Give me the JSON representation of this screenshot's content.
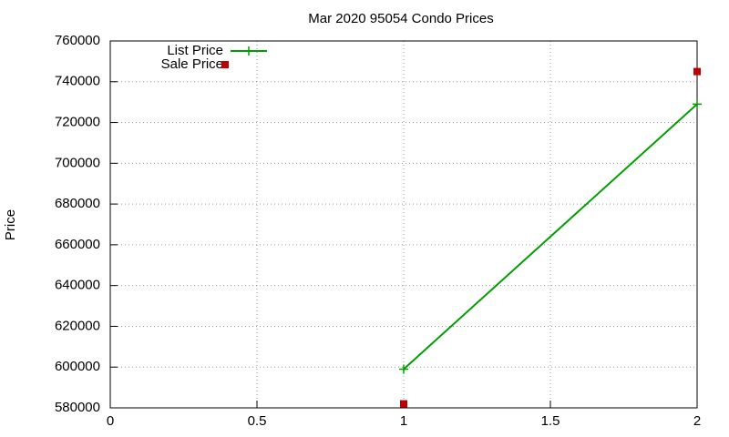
{
  "chart_data": {
    "type": "line",
    "title": "Mar 2020 95054 Condo Prices",
    "y_label": "Price",
    "x": [
      1,
      2
    ],
    "series": [
      {
        "name": "List Price",
        "color": "#009e00",
        "style": "linespoints",
        "values": [
          599000,
          729000
        ]
      },
      {
        "name": "Sale Price",
        "color": "#c00000",
        "style": "points",
        "values": [
          582000,
          745000
        ]
      }
    ],
    "xlim": [
      0,
      2
    ],
    "xticks": [
      0,
      0.5,
      1,
      1.5,
      2
    ],
    "ylim": [
      580000,
      760000
    ],
    "yticks": [
      580000,
      600000,
      620000,
      640000,
      660000,
      680000,
      700000,
      720000,
      740000,
      760000
    ],
    "grid": true,
    "legend": "top-left"
  }
}
